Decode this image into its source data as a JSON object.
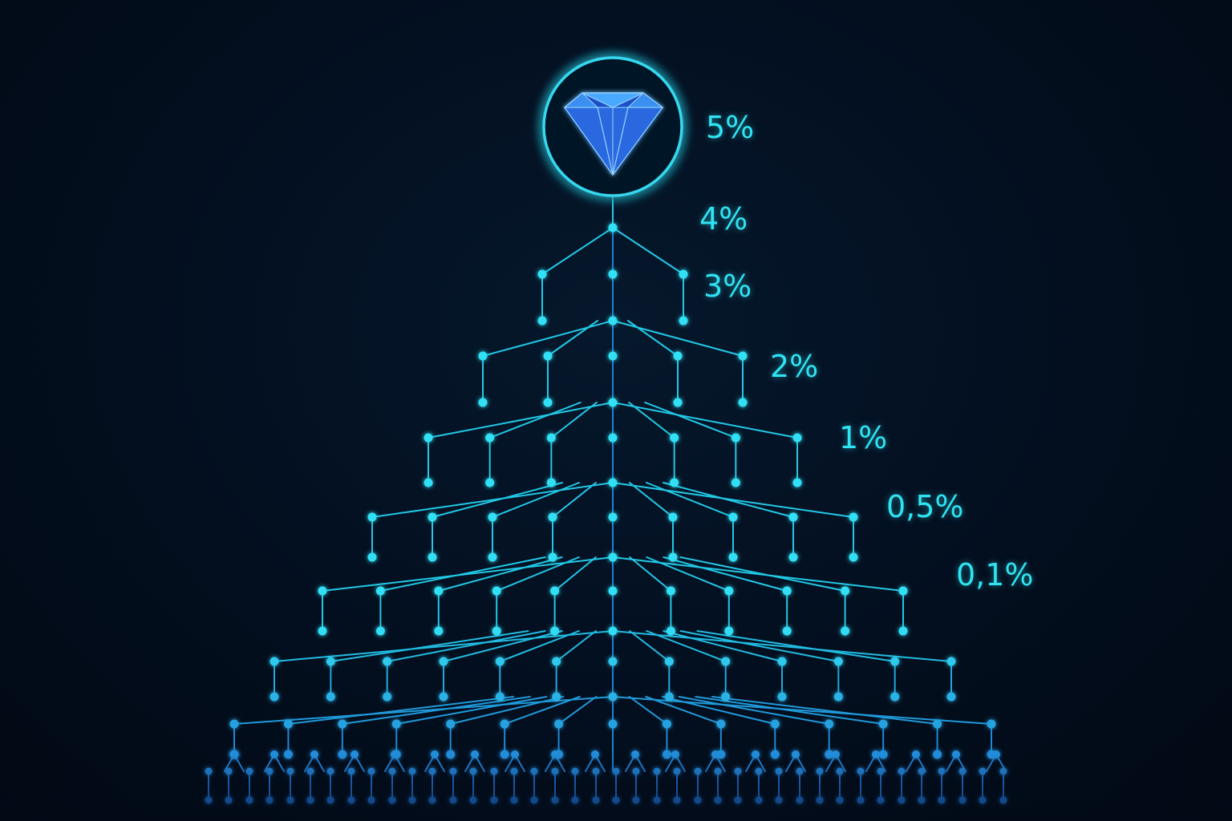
{
  "diagram": {
    "type": "network-pyramid",
    "apex_icon": "diamond-icon",
    "levels": [
      {
        "label": "5%"
      },
      {
        "label": "4%"
      },
      {
        "label": "3%"
      },
      {
        "label": "2%"
      },
      {
        "label": "1%"
      },
      {
        "label": "0,5%"
      },
      {
        "label": "0,1%"
      }
    ]
  },
  "colors": {
    "background": "#020a18",
    "line": "#22c8e6",
    "node": "#33e0f5",
    "node_deep": "#1e6fd0",
    "label": "#2fe3f2",
    "diamond_light": "#4aa8ff",
    "diamond_dark": "#1a4fc8"
  }
}
